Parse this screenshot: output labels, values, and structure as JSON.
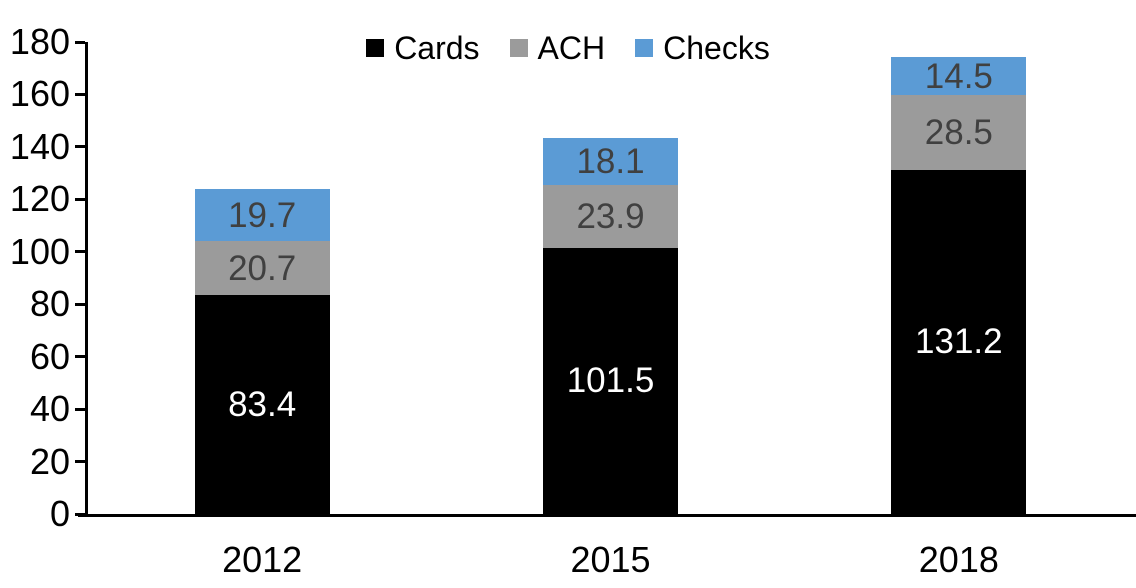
{
  "chart_data": {
    "type": "bar",
    "stacked": true,
    "title": "",
    "xlabel": "",
    "ylabel": "",
    "categories": [
      "2012",
      "2015",
      "2018"
    ],
    "series": [
      {
        "name": "Cards",
        "color": "#000000",
        "label_color": "#FFFFFF",
        "values": [
          83.4,
          101.5,
          131.2
        ]
      },
      {
        "name": "ACH",
        "color": "#9B9B9B",
        "label_color": "#404040",
        "values": [
          20.7,
          23.9,
          28.5
        ]
      },
      {
        "name": "Checks",
        "color": "#5B9BD5",
        "label_color": "#404040",
        "values": [
          19.7,
          18.1,
          14.5
        ]
      }
    ],
    "totals": [
      123.8,
      143.5,
      174.2
    ],
    "ylim": [
      0,
      180
    ],
    "ytick_step": 20,
    "ytick_labels": [
      "0",
      "20",
      "40",
      "60",
      "80",
      "100",
      "120",
      "140",
      "160",
      "180"
    ],
    "grid": false,
    "legend_position": "top",
    "axis_color": "#000000",
    "tick_label_color": "#000000",
    "category_label_color": "#000000"
  }
}
